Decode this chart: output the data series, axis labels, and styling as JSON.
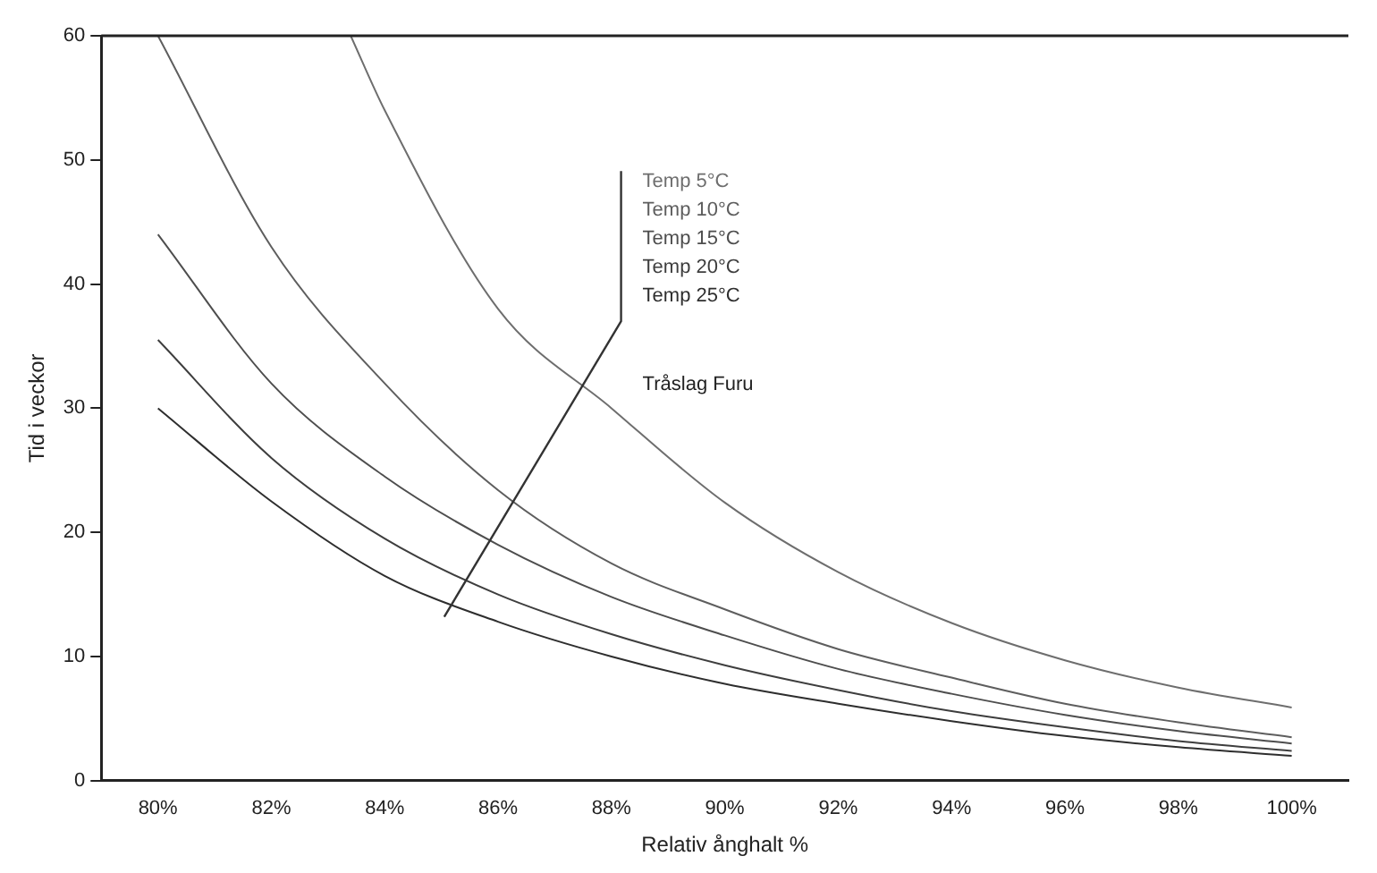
{
  "chart_data": {
    "type": "line",
    "xlabel": "Relativ ånghalt %",
    "ylabel": "Tid i veckor",
    "annotations": [
      "Tråslag Furu"
    ],
    "x": [
      80,
      82,
      84,
      86,
      88,
      90,
      92,
      94,
      96,
      98,
      100
    ],
    "series": [
      {
        "name": "Temp 5°C",
        "color": "#6e6e6e",
        "x": [
          83.4,
          84,
          86,
          88,
          90,
          92,
          94,
          96,
          98,
          100
        ],
        "values": [
          60,
          54,
          38,
          30,
          22.4,
          16.8,
          12.7,
          9.7,
          7.5,
          5.9
        ]
      },
      {
        "name": "Temp 10°C",
        "color": "#5e5e5e",
        "values": [
          60,
          43,
          32,
          23.4,
          17.5,
          13.8,
          10.6,
          8.3,
          6.2,
          4.7,
          3.5
        ]
      },
      {
        "name": "Temp 15°C",
        "color": "#4e4e4e",
        "values": [
          44,
          32,
          24.5,
          19,
          14.8,
          11.7,
          9,
          7,
          5.3,
          4,
          3
        ]
      },
      {
        "name": "Temp 20°C",
        "color": "#3e3e3e",
        "values": [
          35.5,
          26,
          19.5,
          15,
          11.8,
          9.3,
          7.3,
          5.6,
          4.3,
          3.2,
          2.4
        ]
      },
      {
        "name": "Temp 25°C",
        "color": "#2e2e2e",
        "values": [
          30,
          22.5,
          16.5,
          12.8,
          10,
          7.8,
          6.2,
          4.8,
          3.6,
          2.7,
          2
        ]
      }
    ],
    "xlim": [
      79,
      101
    ],
    "xticks": [
      {
        "value": 80,
        "label": "80%"
      },
      {
        "value": 82,
        "label": "82%"
      },
      {
        "value": 84,
        "label": "84%"
      },
      {
        "value": 86,
        "label": "86%"
      },
      {
        "value": 88,
        "label": "88%"
      },
      {
        "value": 90,
        "label": "90%"
      },
      {
        "value": 92,
        "label": "92%"
      },
      {
        "value": 94,
        "label": "94%"
      },
      {
        "value": 96,
        "label": "96%"
      },
      {
        "value": 98,
        "label": "98%"
      },
      {
        "value": 100,
        "label": "100%"
      }
    ],
    "ylim": [
      0,
      60
    ],
    "yticks": [
      0,
      10,
      20,
      30,
      40,
      50,
      60
    ],
    "grid": false,
    "legend": false,
    "marker": "none",
    "line_style": "solid"
  }
}
